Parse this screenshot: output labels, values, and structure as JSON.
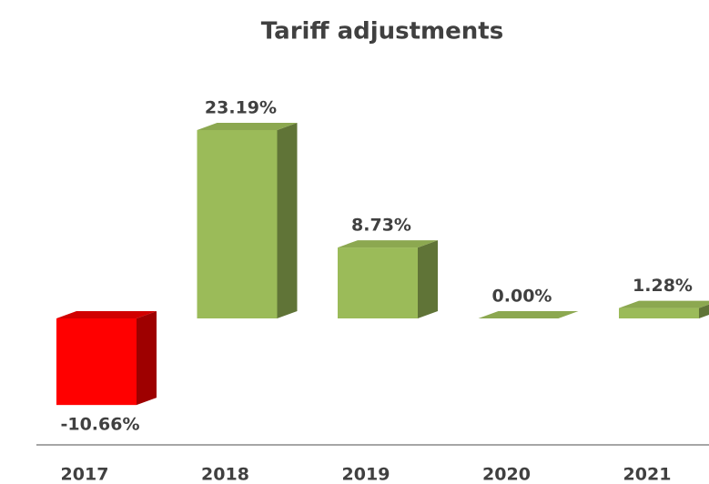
{
  "chart_data": {
    "type": "bar3d",
    "title": "Tariff adjustments",
    "categories": [
      "2017",
      "2018",
      "2019",
      "2020",
      "2021"
    ],
    "values": [
      -10.66,
      23.19,
      8.73,
      0.0,
      1.28
    ],
    "value_labels": [
      "-10.66%",
      "23.19%",
      "8.73%",
      "0.00%",
      "1.28%"
    ],
    "colors": [
      "#ff0000",
      "#9bbb59",
      "#9bbb59",
      "#9bbb59",
      "#9bbb59"
    ]
  }
}
